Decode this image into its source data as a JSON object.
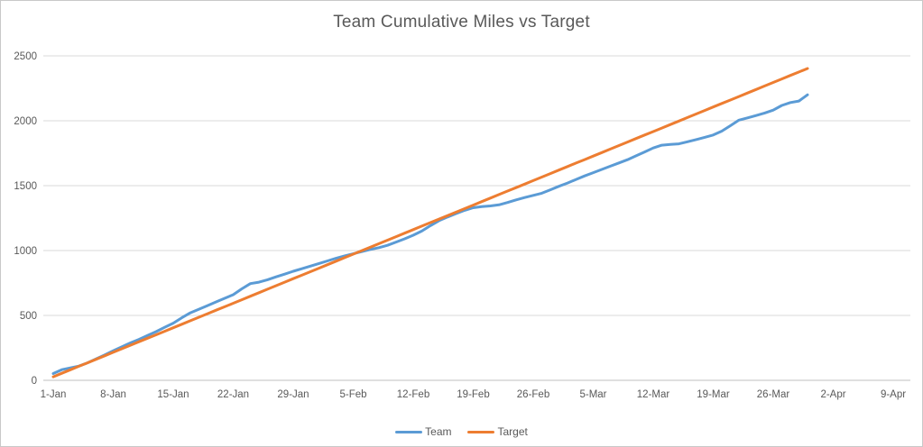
{
  "chart_data": {
    "type": "line",
    "title": "Team Cumulative Miles vs Target",
    "xlabel": "",
    "ylabel": "",
    "ylim": [
      0,
      2500
    ],
    "y_ticks": [
      0,
      500,
      1000,
      1500,
      2000,
      2500
    ],
    "x_tick_labels": [
      "1-Jan",
      "8-Jan",
      "15-Jan",
      "22-Jan",
      "29-Jan",
      "5-Feb",
      "12-Feb",
      "19-Feb",
      "26-Feb",
      "5-Mar",
      "12-Mar",
      "19-Mar",
      "26-Mar",
      "2-Apr",
      "9-Apr"
    ],
    "x_tick_interval_days": 7,
    "x_axis_extent_days": 101,
    "grid": "horizontal",
    "legend_position": "bottom",
    "gridline_color": "#D9D9D9",
    "axis_line_color": "#BFBFBF",
    "text_color": "#595959",
    "series": [
      {
        "name": "Team",
        "color": "#5B9BD5",
        "start_day": 1,
        "values": [
          52,
          82,
          96,
          110,
          135,
          165,
          195,
          228,
          258,
          288,
          315,
          345,
          375,
          408,
          440,
          482,
          520,
          548,
          576,
          604,
          632,
          660,
          705,
          745,
          756,
          775,
          797,
          818,
          840,
          860,
          880,
          900,
          920,
          940,
          958,
          975,
          992,
          1008,
          1022,
          1040,
          1065,
          1090,
          1118,
          1150,
          1192,
          1230,
          1258,
          1285,
          1310,
          1330,
          1338,
          1344,
          1352,
          1370,
          1390,
          1408,
          1425,
          1442,
          1468,
          1495,
          1520,
          1548,
          1575,
          1600,
          1625,
          1650,
          1675,
          1700,
          1730,
          1760,
          1790,
          1812,
          1818,
          1822,
          1838,
          1855,
          1872,
          1890,
          1920,
          1962,
          2005,
          2022,
          2040,
          2060,
          2082,
          2118,
          2140,
          2152,
          2200
        ]
      },
      {
        "name": "Target",
        "color": "#ED7D31",
        "start_day": 1,
        "values": [
          27,
          54,
          81,
          108,
          135,
          162,
          189,
          216,
          243,
          270,
          297,
          324,
          351,
          378,
          405,
          432,
          459,
          486,
          513,
          540,
          567,
          594,
          621,
          648,
          675,
          702,
          729,
          756,
          783,
          810,
          837,
          864,
          891,
          918,
          945,
          972,
          999,
          1026,
          1053,
          1080,
          1107,
          1134,
          1161,
          1188,
          1215,
          1242,
          1269,
          1296,
          1323,
          1350,
          1377,
          1404,
          1431,
          1458,
          1485,
          1512,
          1539,
          1566,
          1593,
          1620,
          1647,
          1674,
          1701,
          1728,
          1755,
          1782,
          1809,
          1836,
          1863,
          1890,
          1917,
          1944,
          1971,
          1998,
          2025,
          2052,
          2079,
          2106,
          2133,
          2160,
          2187,
          2214,
          2241,
          2268,
          2295,
          2322,
          2349,
          2376,
          2403
        ]
      }
    ]
  }
}
